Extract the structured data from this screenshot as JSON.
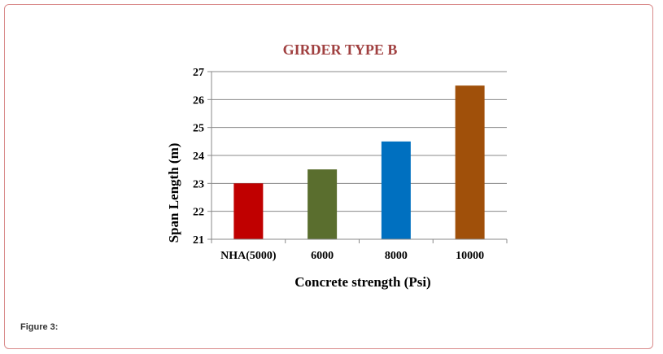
{
  "figure": {
    "caption": "Figure 3:"
  },
  "chart_data": {
    "type": "bar",
    "title": "GIRDER TYPE B",
    "xlabel": "Concrete strength (Psi)",
    "ylabel": "Span Length (m)",
    "ylim": [
      21,
      27
    ],
    "yticks": [
      21,
      22,
      23,
      24,
      25,
      26,
      27
    ],
    "categories": [
      "NHA(5000)",
      "6000",
      "8000",
      "10000"
    ],
    "values": [
      23.0,
      23.5,
      24.5,
      26.5
    ],
    "colors": [
      "#c00000",
      "#5a6e2e",
      "#0070c0",
      "#a0500a"
    ],
    "title_color": "#a04040",
    "grid": true,
    "legend": "none"
  }
}
